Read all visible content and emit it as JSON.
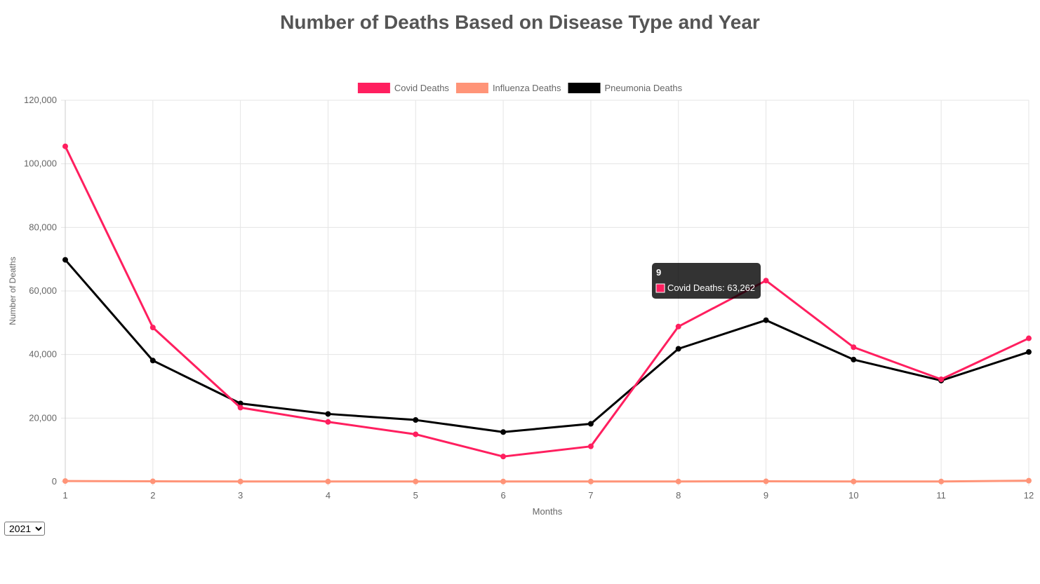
{
  "page": {
    "title": "Number of Deaths Based on Disease Type and Year",
    "year_select": {
      "value": "2021",
      "options": [
        "2021"
      ]
    }
  },
  "chart_data": {
    "type": "line",
    "title": "Number of Deaths Based on Disease Type and Year",
    "xlabel": "Months",
    "ylabel": "Number of Deaths",
    "x": [
      1,
      2,
      3,
      4,
      5,
      6,
      7,
      8,
      9,
      10,
      11,
      12
    ],
    "ylim": [
      0,
      120000
    ],
    "yticks": [
      0,
      20000,
      40000,
      60000,
      80000,
      100000,
      120000
    ],
    "ytick_labels": [
      "0",
      "20,000",
      "40,000",
      "60,000",
      "80,000",
      "100,000",
      "120,000"
    ],
    "grid": true,
    "legend_position": "top",
    "series": [
      {
        "name": "Covid Deaths",
        "color": "#ff1f5f",
        "values": [
          105500,
          48500,
          23300,
          18800,
          14900,
          7900,
          11100,
          48800,
          63262,
          42300,
          32200,
          45100
        ]
      },
      {
        "name": "Influenza Deaths",
        "color": "#ff9478",
        "values": [
          200,
          100,
          50,
          50,
          50,
          50,
          50,
          50,
          100,
          50,
          50,
          300
        ]
      },
      {
        "name": "Pneumonia Deaths",
        "color": "#000000",
        "values": [
          69800,
          38100,
          24600,
          21300,
          19400,
          15600,
          18200,
          41800,
          50800,
          38400,
          31800,
          40800
        ]
      }
    ],
    "tooltip": {
      "title": "9",
      "label": "Covid Deaths: 63,262",
      "color": "#ff1f5f"
    }
  }
}
